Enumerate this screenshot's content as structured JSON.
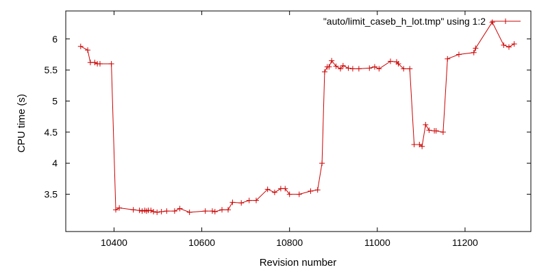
{
  "chart_data": {
    "type": "line",
    "xlabel": "Revision number",
    "ylabel": "CPU time (s)",
    "xlim": [
      10290,
      11350
    ],
    "ylim": [
      2.9,
      6.45
    ],
    "xticks": [
      10400,
      10600,
      10800,
      11000,
      11200
    ],
    "yticks": [
      3.5,
      4,
      4.5,
      5,
      5.5,
      6
    ],
    "xtick_labels": [
      "10400",
      "10600",
      "10800",
      "11000",
      "11200"
    ],
    "ytick_labels": [
      "3.5",
      "4",
      "4.5",
      "5",
      "5.5",
      "6"
    ],
    "legend_position": "top-right",
    "grid": false,
    "series": [
      {
        "name": "\"auto/limit_caseb_h_lot.tmp\" using 1:2",
        "color": "#cc0000",
        "marker": "plus",
        "x": [
          10324,
          10340,
          10346,
          10356,
          10362,
          10368,
          10394,
          10404,
          10412,
          10444,
          10458,
          10464,
          10470,
          10474,
          10478,
          10484,
          10490,
          10498,
          10508,
          10520,
          10538,
          10550,
          10572,
          10608,
          10624,
          10630,
          10646,
          10660,
          10670,
          10690,
          10708,
          10724,
          10750,
          10766,
          10780,
          10790,
          10800,
          10822,
          10848,
          10864,
          10874,
          10880,
          10886,
          10890,
          10896,
          10906,
          10916,
          10922,
          10934,
          10944,
          10958,
          10982,
          10994,
          11004,
          11030,
          11044,
          11048,
          11060,
          11074,
          11084,
          11096,
          11102,
          11110,
          11118,
          11130,
          11134,
          11150,
          11160,
          11186,
          11220,
          11224,
          11262,
          11288,
          11300,
          11312
        ],
        "y": [
          5.88,
          5.82,
          5.62,
          5.62,
          5.6,
          5.6,
          5.6,
          3.25,
          3.28,
          3.25,
          3.24,
          3.23,
          3.24,
          3.23,
          3.24,
          3.24,
          3.22,
          3.21,
          3.22,
          3.23,
          3.23,
          3.27,
          3.21,
          3.23,
          3.23,
          3.22,
          3.25,
          3.25,
          3.37,
          3.36,
          3.4,
          3.4,
          3.58,
          3.53,
          3.59,
          3.59,
          3.5,
          3.5,
          3.55,
          3.57,
          4.0,
          5.47,
          5.55,
          5.55,
          5.65,
          5.56,
          5.52,
          5.57,
          5.53,
          5.52,
          5.52,
          5.53,
          5.55,
          5.52,
          5.64,
          5.63,
          5.6,
          5.52,
          5.52,
          4.3,
          4.3,
          4.27,
          4.62,
          4.53,
          4.52,
          4.52,
          4.5,
          5.68,
          5.75,
          5.78,
          5.85,
          6.27,
          5.9,
          5.87,
          5.92
        ]
      }
    ]
  }
}
